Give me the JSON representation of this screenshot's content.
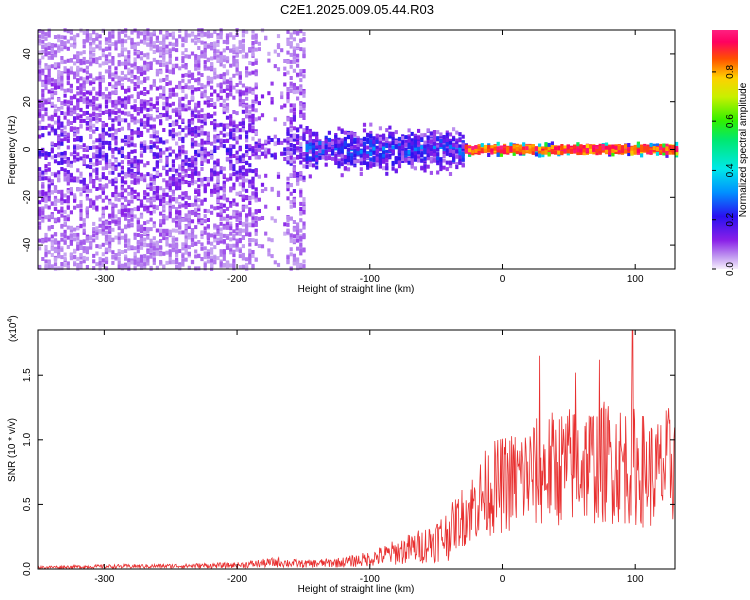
{
  "title": "C2E1.2025.009.05.44.R03",
  "chart_data": [
    {
      "type": "heatmap",
      "xlabel": "Height of straight line (km)",
      "ylabel": "Frequency (Hz)",
      "xlim": [
        -350,
        130
      ],
      "ylim": [
        -50,
        50
      ],
      "xticks": [
        -300,
        -200,
        -100,
        0,
        100
      ],
      "xtick_labels": [
        "-300",
        "-200",
        "-100",
        "0",
        "100"
      ],
      "yticks": [
        -40,
        -20,
        0,
        20,
        40
      ],
      "ytick_labels": [
        "-40",
        "-20",
        "0",
        "20",
        "40"
      ],
      "colorbar": {
        "label": "Normalized spectral amplitude",
        "range": [
          0,
          0.97
        ],
        "ticks": [
          0.0,
          0.2,
          0.4,
          0.6,
          0.8
        ],
        "tick_labels": [
          "0.0",
          "0.2",
          "0.4",
          "0.6",
          "0.8"
        ],
        "colormap": "rainbow: white/lavender (0) → purple → blue → cyan → green → yellow → red → magenta (max)"
      },
      "regions": [
        {
          "x_range": [
            -350,
            -150
          ],
          "freq_spread_hz": 50,
          "amplitude": 0.1,
          "description": "broadband noise"
        },
        {
          "x_range": [
            -150,
            -30
          ],
          "freq_spread_hz": 12,
          "amplitude": 0.3,
          "description": "narrowing band"
        },
        {
          "x_range": [
            -30,
            130
          ],
          "freq_spread_hz": 3,
          "amplitude": 0.9,
          "description": "strong narrow line near 0 Hz"
        }
      ],
      "gaps": [
        [
          -185,
          -165
        ],
        [
          -140,
          -128
        ]
      ]
    },
    {
      "type": "line",
      "xlabel": "Height of straight line (km)",
      "ylabel": "SNR (10 * v/v)",
      "y_multiplier": "(x10",
      "y_multiplier_exp": "4",
      "y_multiplier_close": ")",
      "xlim": [
        -350,
        130
      ],
      "ylim": [
        0,
        1.85
      ],
      "xticks": [
        -300,
        -200,
        -100,
        0,
        100
      ],
      "xtick_labels": [
        "-300",
        "-200",
        "-100",
        "0",
        "100"
      ],
      "yticks": [
        0.0,
        0.5,
        1.0,
        1.5
      ],
      "ytick_labels": [
        "0.0",
        "0.5",
        "1.0",
        "1.5"
      ],
      "color": "#e83030",
      "envelope": {
        "x": [
          -350,
          -300,
          -250,
          -200,
          -170,
          -150,
          -120,
          -100,
          -80,
          -60,
          -40,
          -20,
          -10,
          0,
          20,
          40,
          60,
          80,
          100,
          115,
          130
        ],
        "y": [
          0.02,
          0.03,
          0.035,
          0.045,
          0.08,
          0.06,
          0.08,
          0.12,
          0.2,
          0.28,
          0.42,
          0.7,
          0.85,
          0.9,
          1.0,
          1.08,
          1.12,
          1.15,
          1.1,
          1.0,
          1.15
        ]
      },
      "peaks": [
        {
          "x": 28,
          "y": 1.65
        },
        {
          "x": 73,
          "y": 1.62
        },
        {
          "x": 98,
          "y": 1.85
        },
        {
          "x": 55,
          "y": 1.52
        }
      ]
    }
  ]
}
